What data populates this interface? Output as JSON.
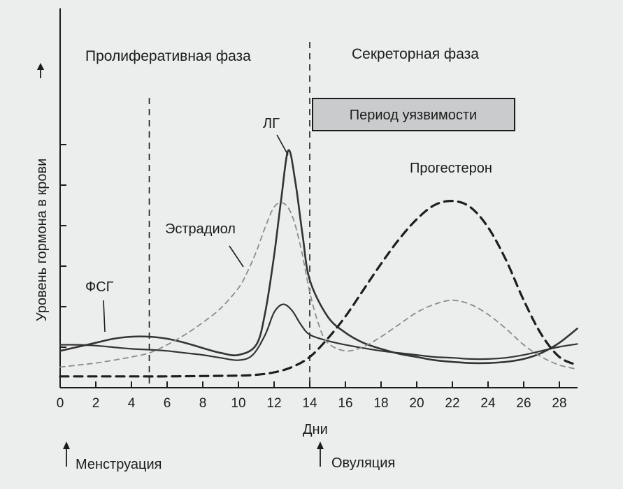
{
  "chart_data": {
    "type": "line",
    "xlabel": "Дни",
    "ylabel": "Уровень гормона в крови",
    "xlim": [
      0,
      29
    ],
    "x_ticks": [
      0,
      2,
      4,
      6,
      8,
      10,
      12,
      14,
      16,
      18,
      20,
      22,
      24,
      26,
      28
    ],
    "ylim": [
      0,
      6
    ],
    "y_ticks_count": 6,
    "grid": false,
    "phases": [
      {
        "label": "Пролиферативная фаза",
        "x_start": 0,
        "x_end": 14
      },
      {
        "label": "Секреторная фаза",
        "x_start": 14,
        "x_end": 29
      }
    ],
    "phase_boundaries": [
      5,
      14
    ],
    "vulnerability_period": {
      "label": "Период уязвимости",
      "color": "#c9cbcc"
    },
    "markers": [
      {
        "label": "Менструация",
        "x": 0
      },
      {
        "label": "Овуляция",
        "x": 14
      }
    ],
    "series": [
      {
        "name": "ФСГ",
        "style": "solid-thin",
        "color": "#333333",
        "x": [
          0,
          1,
          2,
          3,
          4,
          5,
          6,
          7,
          8,
          9,
          10,
          10.8,
          11.5,
          12,
          12.5,
          13,
          13.5,
          14,
          15,
          16,
          17,
          18,
          19,
          20,
          21,
          22,
          23,
          24,
          25,
          26,
          27,
          28,
          29
        ],
        "y": [
          0.8,
          0.8,
          0.78,
          0.74,
          0.7,
          0.68,
          0.65,
          0.6,
          0.55,
          0.48,
          0.42,
          0.55,
          1.05,
          1.6,
          1.8,
          1.65,
          1.3,
          1.05,
          0.9,
          0.8,
          0.72,
          0.65,
          0.6,
          0.55,
          0.5,
          0.48,
          0.45,
          0.45,
          0.48,
          0.55,
          0.65,
          0.75,
          0.82
        ]
      },
      {
        "name": "ЛГ",
        "style": "solid",
        "color": "#333333",
        "x": [
          0,
          1,
          2,
          3,
          4,
          5,
          6,
          7,
          8,
          9,
          10,
          11,
          11.5,
          12,
          12.4,
          12.8,
          13.2,
          13.6,
          14,
          15,
          16,
          17,
          18,
          19,
          20,
          21,
          22,
          23,
          24,
          25,
          26,
          27,
          28,
          29
        ],
        "y": [
          0.65,
          0.75,
          0.85,
          0.95,
          1.0,
          1.0,
          0.95,
          0.85,
          0.72,
          0.6,
          0.55,
          0.8,
          1.6,
          3.0,
          4.4,
          5.6,
          4.8,
          3.5,
          2.4,
          1.5,
          1.1,
          0.85,
          0.7,
          0.58,
          0.5,
          0.42,
          0.38,
          0.35,
          0.35,
          0.38,
          0.45,
          0.6,
          0.85,
          1.2
        ]
      },
      {
        "name": "Эстрадиол",
        "style": "dashed-thin",
        "color": "#8c8c8c",
        "x": [
          0,
          1,
          2,
          3,
          4,
          5,
          6,
          7,
          8,
          9,
          10,
          10.5,
          11,
          11.5,
          12,
          12.5,
          13,
          13.5,
          14,
          14.5,
          15,
          16,
          17,
          18,
          19,
          20,
          21,
          22,
          23,
          24,
          25,
          26,
          27,
          28,
          29
        ],
        "y": [
          0.25,
          0.3,
          0.35,
          0.42,
          0.5,
          0.6,
          0.8,
          1.05,
          1.35,
          1.7,
          2.2,
          2.6,
          3.1,
          3.7,
          4.2,
          4.3,
          4.0,
          3.2,
          2.1,
          1.3,
          0.85,
          0.65,
          0.75,
          1.0,
          1.3,
          1.6,
          1.8,
          1.9,
          1.8,
          1.55,
          1.2,
          0.8,
          0.5,
          0.3,
          0.2
        ]
      },
      {
        "name": "Прогестерон",
        "style": "dashed-bold",
        "color": "#1e1e1e",
        "x": [
          0,
          2,
          4,
          6,
          8,
          10,
          11,
          12,
          13,
          14,
          15,
          16,
          17,
          18,
          19,
          20,
          21,
          22,
          23,
          24,
          25,
          26,
          27,
          28,
          29
        ],
        "y": [
          0.02,
          0.02,
          0.02,
          0.02,
          0.03,
          0.04,
          0.06,
          0.12,
          0.25,
          0.5,
          0.95,
          1.5,
          2.15,
          2.8,
          3.4,
          3.9,
          4.25,
          4.35,
          4.2,
          3.7,
          2.9,
          1.9,
          1.05,
          0.5,
          0.3
        ]
      }
    ],
    "annotations": [
      {
        "text": "Пролиферативная фаза"
      },
      {
        "text": "Секреторная фаза"
      },
      {
        "text": "Период уязвимости"
      },
      {
        "text": "ЛГ"
      },
      {
        "text": "Эстрадиол"
      },
      {
        "text": "Прогестерон"
      },
      {
        "text": "ФСГ"
      },
      {
        "text": "Дни"
      },
      {
        "text": "Менструация"
      },
      {
        "text": "Овуляция"
      }
    ]
  }
}
